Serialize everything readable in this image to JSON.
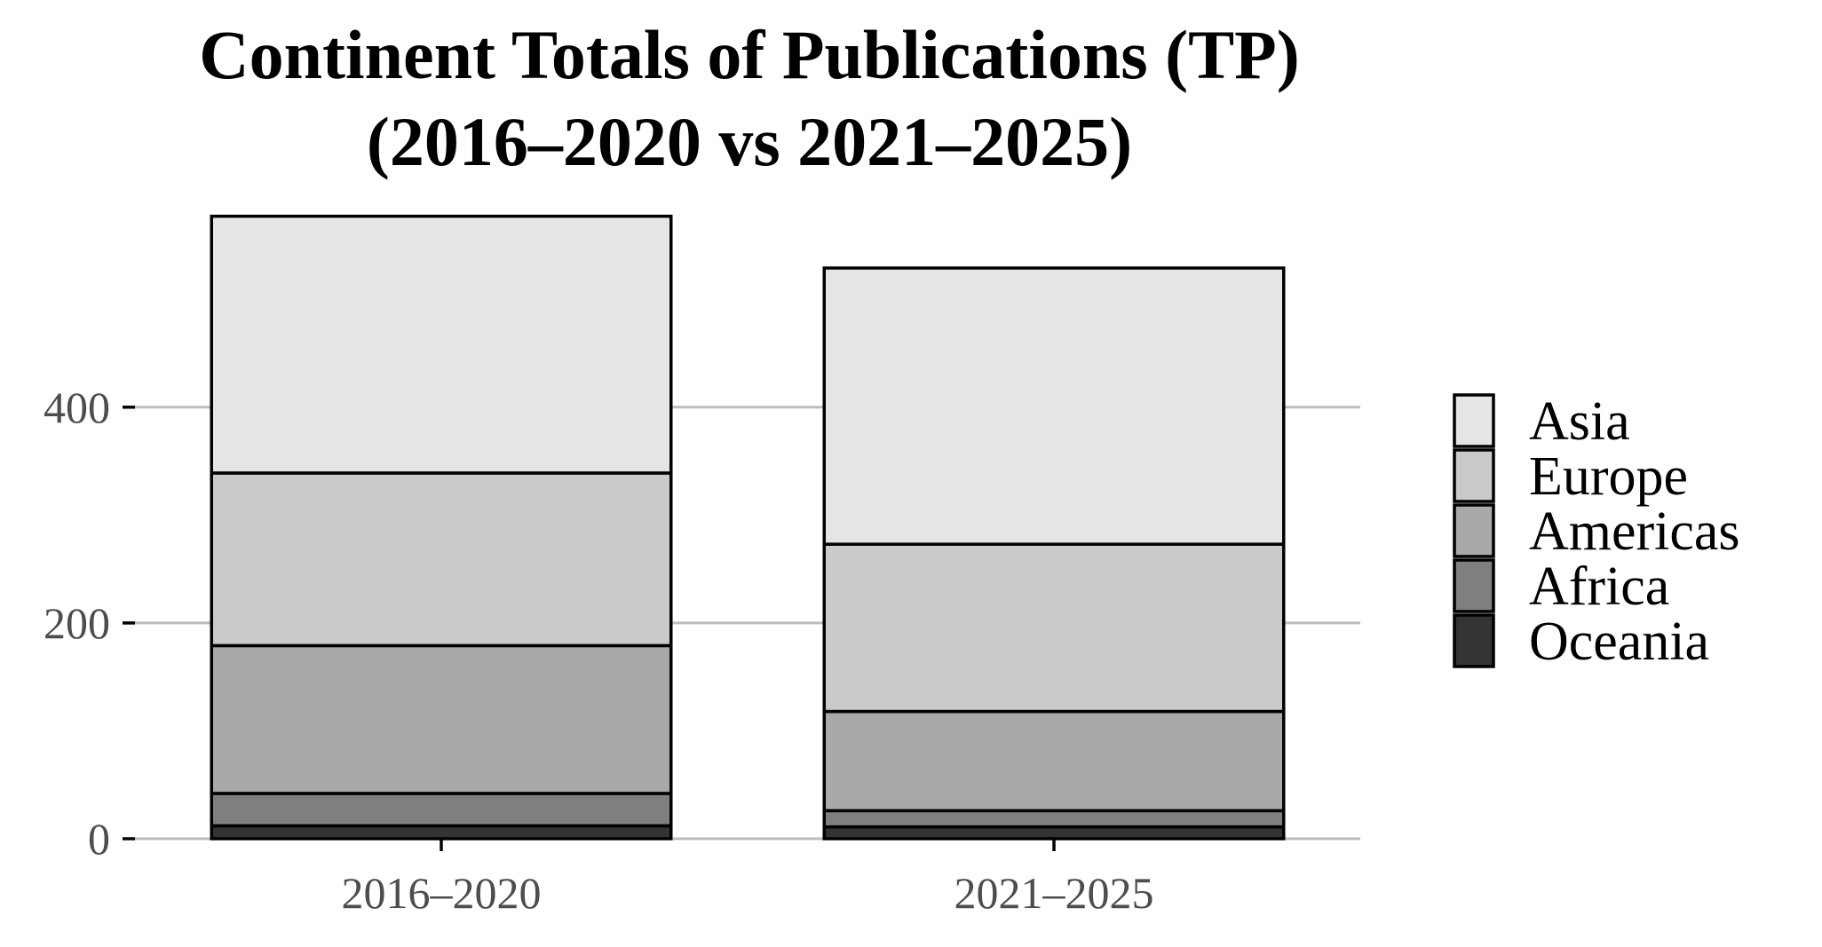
{
  "chart_data": {
    "type": "bar",
    "stacked": true,
    "title_lines": [
      "Continent Totals of Publications (TP)",
      "(2016–2020 vs 2021–2025)"
    ],
    "xlabel": "",
    "ylabel": "",
    "categories": [
      "2016–2020",
      "2021–2025"
    ],
    "ylim": [
      0,
      580
    ],
    "yticks": [
      0,
      200,
      400
    ],
    "ytick_labels": [
      "0",
      "200",
      "400"
    ],
    "grid": "horizontal major",
    "legend_position": "right",
    "series": [
      {
        "name": "Oceania",
        "color": "#333333",
        "values": [
          12,
          11
        ]
      },
      {
        "name": "Africa",
        "color": "#7f7f7f",
        "values": [
          30,
          15
        ]
      },
      {
        "name": "Americas",
        "color": "#a9a9a9",
        "values": [
          137,
          92
        ]
      },
      {
        "name": "Europe",
        "color": "#cacaca",
        "values": [
          160,
          155
        ]
      },
      {
        "name": "Asia",
        "color": "#e5e5e5",
        "values": [
          238,
          256
        ]
      }
    ],
    "legend_order": [
      "Asia",
      "Europe",
      "Americas",
      "Africa",
      "Oceania"
    ]
  }
}
